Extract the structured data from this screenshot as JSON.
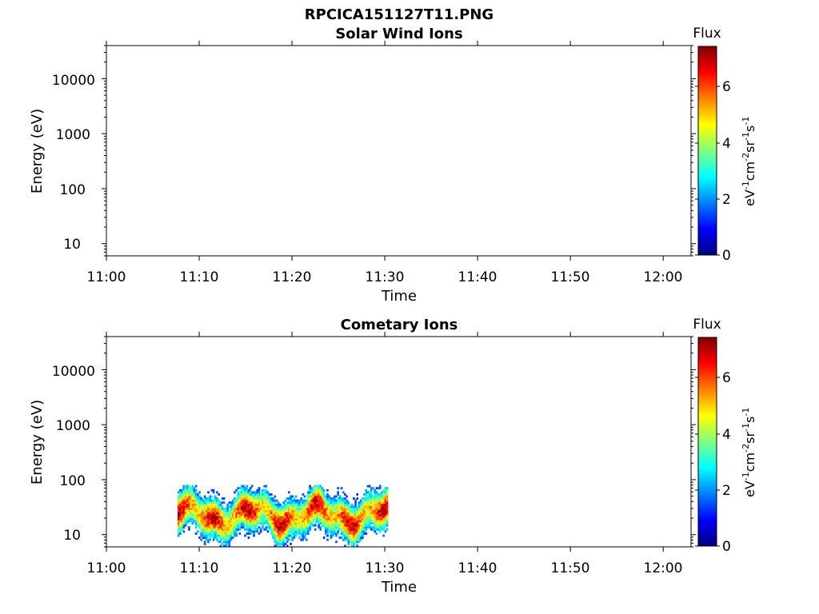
{
  "figure_title": "RPCICA151127T11.PNG",
  "chart_data": [
    {
      "type": "heatmap",
      "title": "Solar Wind Ions",
      "xlabel": "Time",
      "ylabel": "Energy (eV)",
      "x_ticks": [
        "11:00",
        "11:10",
        "11:20",
        "11:30",
        "11:40",
        "11:50",
        "12:00"
      ],
      "xlim": [
        "11:00",
        "12:03"
      ],
      "y_scale": "log",
      "y_ticks": [
        "10",
        "100",
        "1000",
        "10000"
      ],
      "ylim": [
        6,
        40000
      ],
      "colorbar": {
        "title": "Flux",
        "label": "eV-1cm-2sr-1s-1",
        "ticks": [
          "0",
          "2",
          "4",
          "6"
        ],
        "range": [
          0,
          7.4
        ]
      },
      "data": []
    },
    {
      "type": "heatmap",
      "title": "Cometary Ions",
      "xlabel": "Time",
      "ylabel": "Energy (eV)",
      "x_ticks": [
        "11:00",
        "11:10",
        "11:20",
        "11:30",
        "11:40",
        "11:50",
        "12:00"
      ],
      "xlim": [
        "11:00",
        "12:03"
      ],
      "y_scale": "log",
      "y_ticks": [
        "10",
        "100",
        "1000",
        "10000"
      ],
      "ylim": [
        6,
        40000
      ],
      "colorbar": {
        "title": "Flux",
        "label": "eV-1cm-2sr-1s-1",
        "ticks": [
          "0",
          "2",
          "4",
          "6"
        ],
        "range": [
          0,
          7.4
        ]
      },
      "data_extent": {
        "time": [
          "11:07:40",
          "11:30:20"
        ],
        "energy_eV": [
          6,
          80
        ]
      },
      "peak_band_eV": [
        12,
        40
      ],
      "peak_flux": 7
    }
  ],
  "colorbar_unit": {
    "ev": "eV",
    "ev_sup": "-1",
    "cm": "cm",
    "cm_sup": "-2",
    "sr": "sr",
    "sr_sup": "-1",
    "s": "s",
    "s_sup": "-1"
  }
}
